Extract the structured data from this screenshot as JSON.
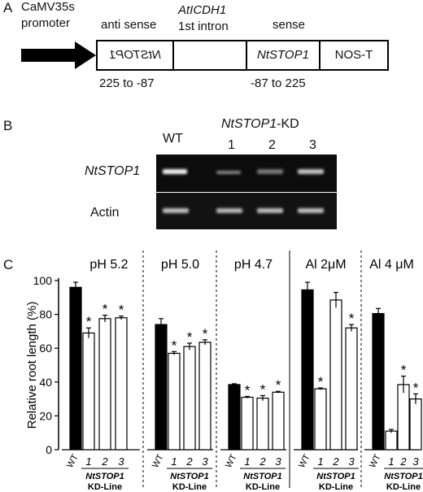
{
  "panel_a": {
    "letter": "A",
    "promoter": [
      "CaMV35s",
      "promoter"
    ],
    "antisense_label": "anti sense",
    "intron_label_line1": "AtICDH1",
    "intron_label_line2": "1st intron",
    "sense_label": "sense",
    "antisense_gene": "NtSTOP1",
    "sense_gene": "NtSTOP1",
    "terminator": "NOS-T",
    "antisense_range": "225 to -87",
    "sense_range": "-87 to 225"
  },
  "panel_b": {
    "letter": "B",
    "wt_label": "WT",
    "kd_title_gene": "NtSTOP1",
    "kd_title_suffix": "-KD",
    "lanes": [
      "1",
      "2",
      "3"
    ],
    "row1_label": "NtSTOP1",
    "row2_label": "Actin"
  },
  "panel_c": {
    "letter": "C"
  },
  "chart_data": {
    "type": "bar",
    "ylabel": "Relative root length (%)",
    "ylim": [
      0,
      100
    ],
    "yticks": [
      0,
      20,
      40,
      60,
      80,
      100
    ],
    "groups": [
      {
        "title": "pH 5.2",
        "values": [
          96,
          69,
          77.5,
          78
        ],
        "errors": [
          3,
          3,
          2,
          1
        ],
        "significant": [
          false,
          true,
          true,
          true
        ]
      },
      {
        "title": "pH 5.0",
        "values": [
          74,
          57,
          61,
          63.5
        ],
        "errors": [
          3.5,
          1,
          2,
          1.5
        ],
        "significant": [
          false,
          true,
          true,
          true
        ]
      },
      {
        "title": "pH 4.7",
        "values": [
          38.5,
          31,
          30.5,
          34
        ],
        "errors": [
          0.5,
          0.5,
          1.5,
          0.5
        ],
        "significant": [
          false,
          true,
          true,
          true
        ]
      },
      {
        "title": "Al 2μM",
        "values": [
          94.5,
          36,
          88.5,
          72
        ],
        "errors": [
          4.5,
          0.5,
          4.5,
          2
        ],
        "significant": [
          false,
          true,
          false,
          true
        ]
      },
      {
        "title": "Al 4 μM",
        "values": [
          80.5,
          11,
          38.5,
          30
        ],
        "errors": [
          3,
          1,
          5,
          3
        ],
        "significant": [
          false,
          false,
          true,
          true
        ]
      }
    ],
    "bar_labels": [
      "WT",
      "1",
      "2",
      "3"
    ],
    "line_gene": "NtSTOP1",
    "line_suffix": "KD-Line",
    "colors": {
      "wt": "#000000",
      "kd": "#ffffff"
    }
  }
}
